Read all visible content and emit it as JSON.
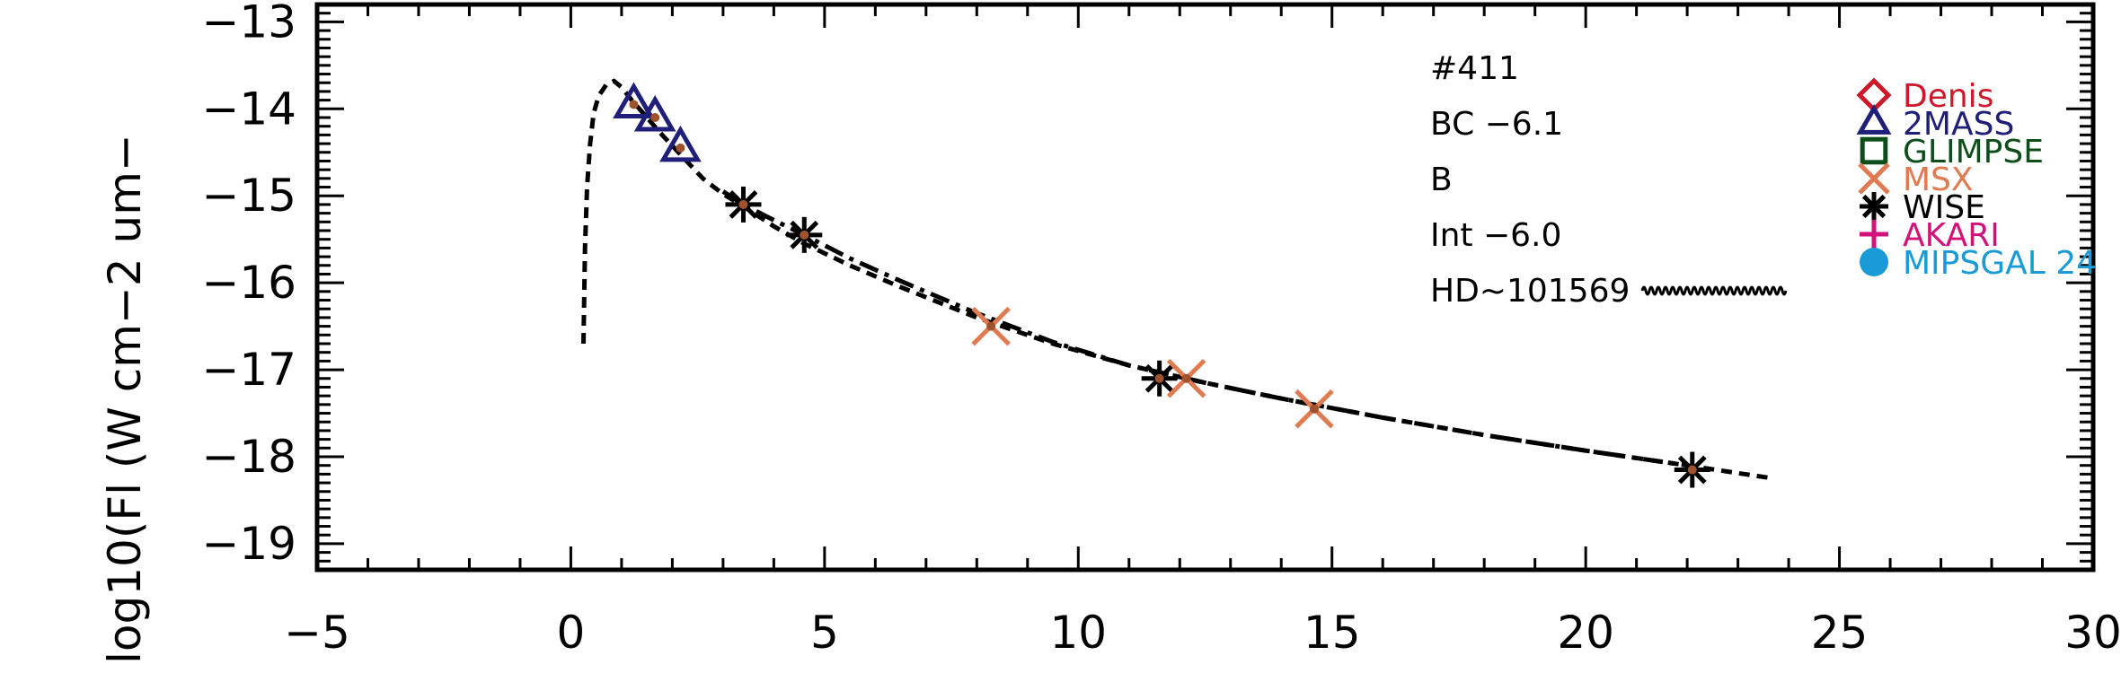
{
  "chart_data": {
    "type": "scatter",
    "ylabel": "log10(Fl (W cm−2 um−",
    "xlabel": "",
    "title": "",
    "xlim": [
      -5,
      30
    ],
    "ylim": [
      -19.3,
      -12.8
    ],
    "x_ticks": [
      -5,
      0,
      5,
      10,
      15,
      20,
      25,
      30
    ],
    "x_tick_labels": [
      "−5",
      "0",
      "5",
      "10",
      "15",
      "20",
      "25",
      "30"
    ],
    "y_ticks": [
      -13,
      -14,
      -15,
      -16,
      -17,
      -18,
      -19
    ],
    "y_tick_labels": [
      "−13",
      "−14",
      "−15",
      "−16",
      "−17",
      "−18",
      "−19"
    ],
    "annotations": [
      "#411",
      "BC −6.1",
      "B",
      "Int −6.0",
      "HD~101569"
    ],
    "legend_placement": "top-right",
    "legend": [
      {
        "name": "Denis",
        "color": "#cc1a2a",
        "marker": "diamond"
      },
      {
        "name": "2MASS",
        "color": "#1f1f7a",
        "marker": "triangle"
      },
      {
        "name": "GLIMPSE",
        "color": "#0d4d1a",
        "marker": "square"
      },
      {
        "name": "MSX",
        "color": "#e07a50",
        "marker": "x"
      },
      {
        "name": "WISE",
        "color": "#000000",
        "marker": "asterisk"
      },
      {
        "name": "AKARI",
        "color": "#d1127a",
        "marker": "plus"
      },
      {
        "name": "MIPSGAL 24",
        "color": "#1a9ad6",
        "marker": "circle"
      }
    ],
    "series": [
      {
        "name": "2MASS",
        "marker": "triangle",
        "color": "#1f1f7a",
        "x": [
          1.24,
          1.66,
          2.16
        ],
        "y": [
          -13.95,
          -14.1,
          -14.45
        ]
      },
      {
        "name": "WISE",
        "marker": "asterisk",
        "color": "#000000",
        "x": [
          3.4,
          4.6,
          11.6,
          22.1
        ],
        "y": [
          -15.1,
          -15.45,
          -17.1,
          -18.15
        ]
      },
      {
        "name": "MSX",
        "marker": "x",
        "color": "#e07a50",
        "x": [
          8.28,
          12.13,
          14.65
        ],
        "y": [
          -16.5,
          -17.1,
          -17.45
        ]
      },
      {
        "name": "data-points",
        "marker": "dot",
        "color": "#a0522d",
        "x": [
          1.24,
          1.66,
          2.16,
          3.4,
          4.6,
          8.28,
          11.6,
          12.13,
          14.65,
          22.1
        ],
        "y": [
          -13.95,
          -14.1,
          -14.45,
          -15.1,
          -15.45,
          -16.5,
          -17.1,
          -17.1,
          -17.45,
          -18.15
        ]
      }
    ],
    "model_curves": [
      {
        "style": "dotted",
        "x": [
          0.25,
          0.28,
          0.32,
          0.38,
          0.45,
          0.55,
          0.7,
          0.85,
          1.0,
          1.2,
          1.5,
          1.8,
          2.2,
          2.6,
          3.0,
          3.4,
          4.0,
          4.6,
          5.5,
          6.5,
          8.0,
          9.5,
          11.0,
          12.5,
          14.0,
          16.0,
          18.0,
          20.0,
          22.0,
          23.7
        ],
        "y": [
          -16.7,
          -15.6,
          -14.9,
          -14.4,
          -14.05,
          -13.85,
          -13.72,
          -13.68,
          -13.75,
          -13.9,
          -14.1,
          -14.3,
          -14.55,
          -14.8,
          -14.98,
          -15.12,
          -15.35,
          -15.55,
          -15.8,
          -16.05,
          -16.4,
          -16.7,
          -16.95,
          -17.15,
          -17.33,
          -17.55,
          -17.75,
          -17.93,
          -18.1,
          -18.25
        ]
      },
      {
        "style": "dash-dot",
        "x": [
          3.0,
          3.4,
          4.0,
          4.6,
          5.5,
          6.5,
          8.0,
          9.5,
          11.0,
          12.5,
          14.0,
          16.0,
          18.0,
          20.0,
          22.0
        ],
        "y": [
          -14.95,
          -15.1,
          -15.28,
          -15.45,
          -15.72,
          -15.98,
          -16.35,
          -16.68,
          -16.95,
          -17.15,
          -17.33,
          -17.55,
          -17.75,
          -17.93,
          -18.1
        ]
      }
    ]
  }
}
